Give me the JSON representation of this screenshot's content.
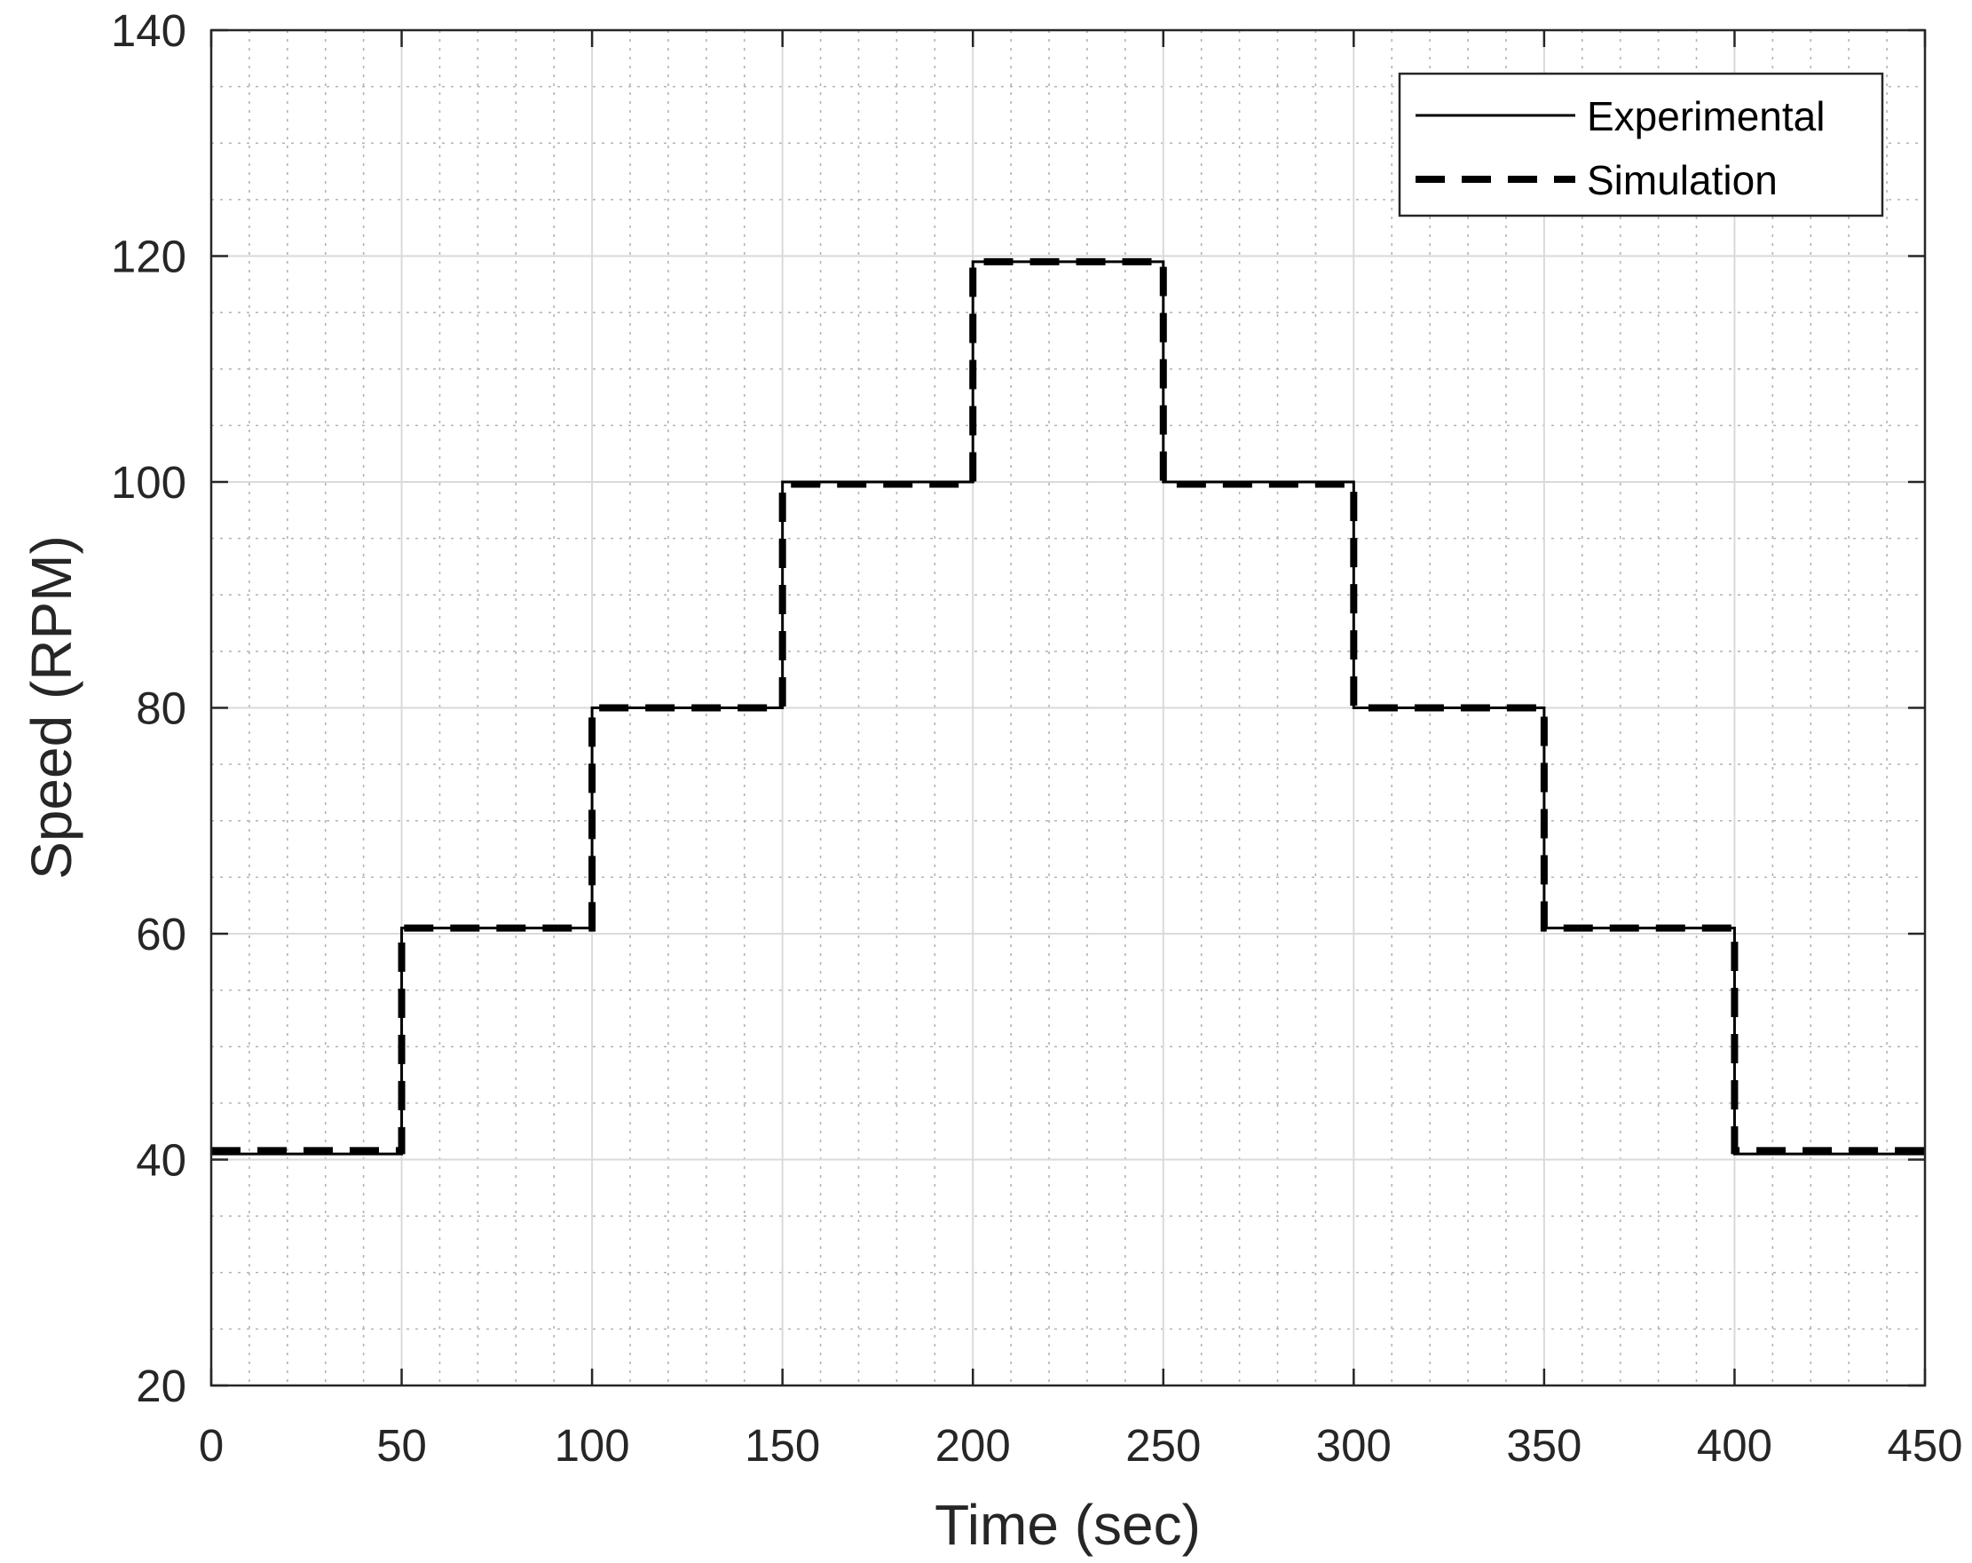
{
  "chart_data": {
    "type": "line",
    "title": "",
    "xlabel": "Time (sec)",
    "ylabel": "Speed (RPM)",
    "xlim": [
      0,
      450
    ],
    "ylim": [
      20,
      140
    ],
    "xticks": [
      0,
      50,
      100,
      150,
      200,
      250,
      300,
      350,
      400,
      450
    ],
    "yticks": [
      20,
      40,
      60,
      80,
      100,
      120,
      140
    ],
    "x_minor_step": 10,
    "y_minor_step": 5,
    "grid": true,
    "legend": {
      "position": "top-right",
      "entries": [
        "Experimental",
        "Simulation"
      ]
    },
    "series": [
      {
        "name": "Experimental",
        "style": "solid",
        "color": "#000000",
        "points": [
          [
            0,
            40.5
          ],
          [
            50,
            40.5
          ],
          [
            50,
            60.5
          ],
          [
            100,
            60.5
          ],
          [
            100,
            80
          ],
          [
            150,
            80
          ],
          [
            150,
            100
          ],
          [
            200,
            100
          ],
          [
            200,
            119.5
          ],
          [
            250,
            119.5
          ],
          [
            250,
            100
          ],
          [
            300,
            100
          ],
          [
            300,
            80
          ],
          [
            350,
            80
          ],
          [
            350,
            60.5
          ],
          [
            400,
            60.5
          ],
          [
            400,
            40.5
          ],
          [
            450,
            40.5
          ]
        ]
      },
      {
        "name": "Simulation",
        "style": "dashed",
        "color": "#000000",
        "points": [
          [
            0,
            40.8
          ],
          [
            50,
            40.8
          ],
          [
            50,
            60.5
          ],
          [
            100,
            60.5
          ],
          [
            100,
            80
          ],
          [
            150,
            80
          ],
          [
            150,
            99.8
          ],
          [
            200,
            99.8
          ],
          [
            200,
            119.5
          ],
          [
            250,
            119.5
          ],
          [
            250,
            99.8
          ],
          [
            300,
            99.8
          ],
          [
            300,
            80
          ],
          [
            350,
            80
          ],
          [
            350,
            60.5
          ],
          [
            400,
            60.5
          ],
          [
            400,
            40.8
          ],
          [
            450,
            40.8
          ]
        ]
      }
    ]
  }
}
